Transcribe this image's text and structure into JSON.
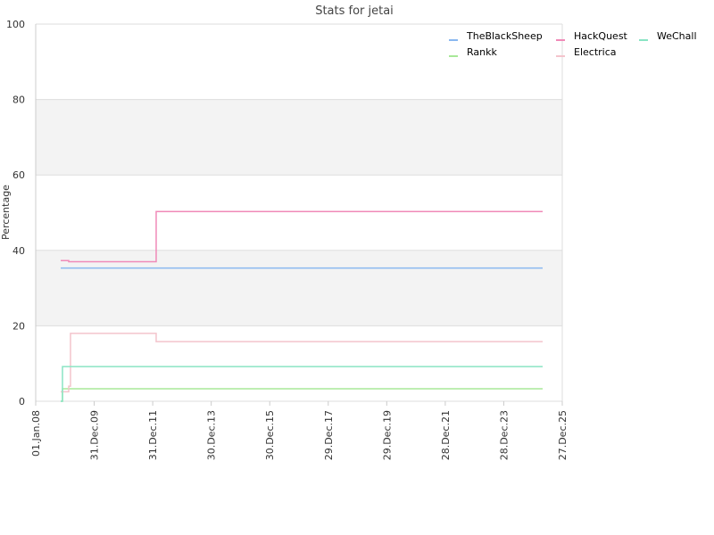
{
  "chart_data": {
    "type": "line",
    "title": "Stats for jetai",
    "ylabel": "Percentage",
    "ylim": [
      0,
      100
    ],
    "yticks": [
      0,
      20,
      40,
      60,
      80,
      100
    ],
    "grid": true,
    "xlim": [
      "2008-01-01",
      "2025-12-27"
    ],
    "xticks": [
      {
        "value": "2008-01-01",
        "label": "01.Jan.08"
      },
      {
        "value": "2009-12-31",
        "label": "31.Dec.09"
      },
      {
        "value": "2011-12-31",
        "label": "31.Dec.11"
      },
      {
        "value": "2013-12-30",
        "label": "30.Dec.13"
      },
      {
        "value": "2015-12-30",
        "label": "30.Dec.15"
      },
      {
        "value": "2017-12-29",
        "label": "29.Dec.17"
      },
      {
        "value": "2019-12-29",
        "label": "29.Dec.19"
      },
      {
        "value": "2021-12-28",
        "label": "28.Dec.21"
      },
      {
        "value": "2023-12-28",
        "label": "28.Dec.23"
      },
      {
        "value": "2025-12-27",
        "label": "27.Dec.25"
      }
    ],
    "legend": "top-right",
    "series": [
      {
        "name": "TheBlackSheep",
        "color": "#8ab8f0",
        "x": [
          "2008-11-08",
          "2025-04-26"
        ],
        "values": [
          35.3,
          35.3
        ]
      },
      {
        "name": "Rankk",
        "color": "#a8e898",
        "x": [
          "2008-11-08",
          "2008-11-30",
          "2025-04-26"
        ],
        "values": [
          0,
          3.3,
          3.3
        ]
      },
      {
        "name": "HackQuest",
        "color": "#f08ab8",
        "x": [
          "2008-11-08",
          "2009-02-16",
          "2012-02-12",
          "2025-04-26"
        ],
        "values": [
          37.3,
          37,
          50.3,
          50.3
        ]
      },
      {
        "name": "Electrica",
        "color": "#f4c4cc",
        "x": [
          "2008-11-08",
          "2009-02-16",
          "2009-03-10",
          "2012-02-12",
          "2025-04-26"
        ],
        "values": [
          2.5,
          4,
          18,
          15.8,
          15.8
        ]
      },
      {
        "name": "WeChall",
        "color": "#8ae4c4",
        "x": [
          "2008-11-08",
          "2008-11-30",
          "2025-04-26"
        ],
        "values": [
          0,
          9.2,
          9.2
        ]
      }
    ]
  }
}
